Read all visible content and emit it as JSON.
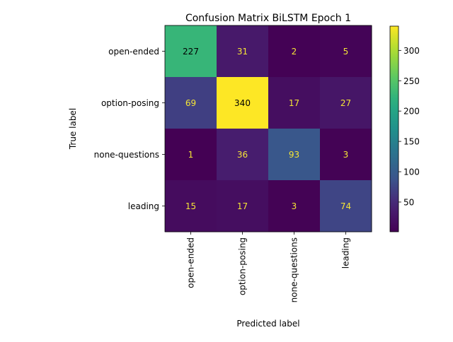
{
  "chart_data": {
    "type": "heatmap",
    "title": "Confusion Matrix BiLSTM Epoch 1",
    "xlabel": "Predicted label",
    "ylabel": "True label",
    "x_categories": [
      "open-ended",
      "option-posing",
      "none-questions",
      "leading"
    ],
    "y_categories": [
      "open-ended",
      "option-posing",
      "none-questions",
      "leading"
    ],
    "matrix": [
      [
        227,
        31,
        2,
        5
      ],
      [
        69,
        340,
        17,
        27
      ],
      [
        1,
        36,
        93,
        3
      ],
      [
        15,
        17,
        3,
        74
      ]
    ],
    "colormap": "viridis",
    "vmin": 1,
    "vmax": 340,
    "colorbar_ticks": [
      50,
      100,
      150,
      200,
      250,
      300
    ],
    "grid": false
  }
}
